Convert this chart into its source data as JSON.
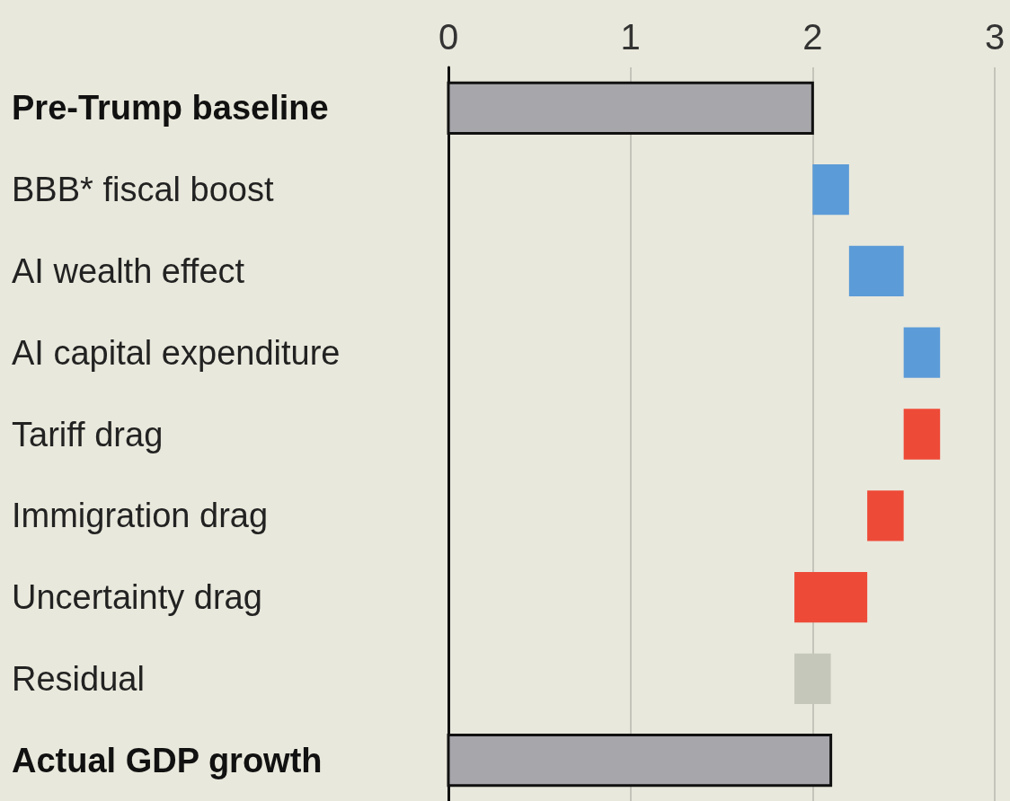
{
  "chart_data": {
    "type": "bar",
    "orientation": "horizontal",
    "categories": [
      "Pre-Trump baseline",
      "BBB* fiscal boost",
      "AI wealth effect",
      "AI capital expenditure",
      "Tariff drag",
      "Immigration drag",
      "Uncertainty drag",
      "Residual",
      "Actual GDP growth"
    ],
    "values": [
      2.0,
      0.2,
      0.3,
      0.2,
      -0.2,
      -0.2,
      -0.4,
      0.2,
      2.1
    ],
    "base": [
      0,
      2.0,
      2.2,
      2.5,
      2.7,
      2.5,
      2.3,
      1.9,
      0
    ],
    "colors": [
      "#a6a6ab",
      "#5b9bd8",
      "#5b9bd8",
      "#5b9bd8",
      "#ee4a38",
      "#ee4a38",
      "#ee4a38",
      "#c6c7bb",
      "#a6a6ab"
    ],
    "xlim": [
      0,
      3
    ],
    "xticks": [
      0,
      1,
      2,
      3
    ],
    "grid": "x"
  }
}
